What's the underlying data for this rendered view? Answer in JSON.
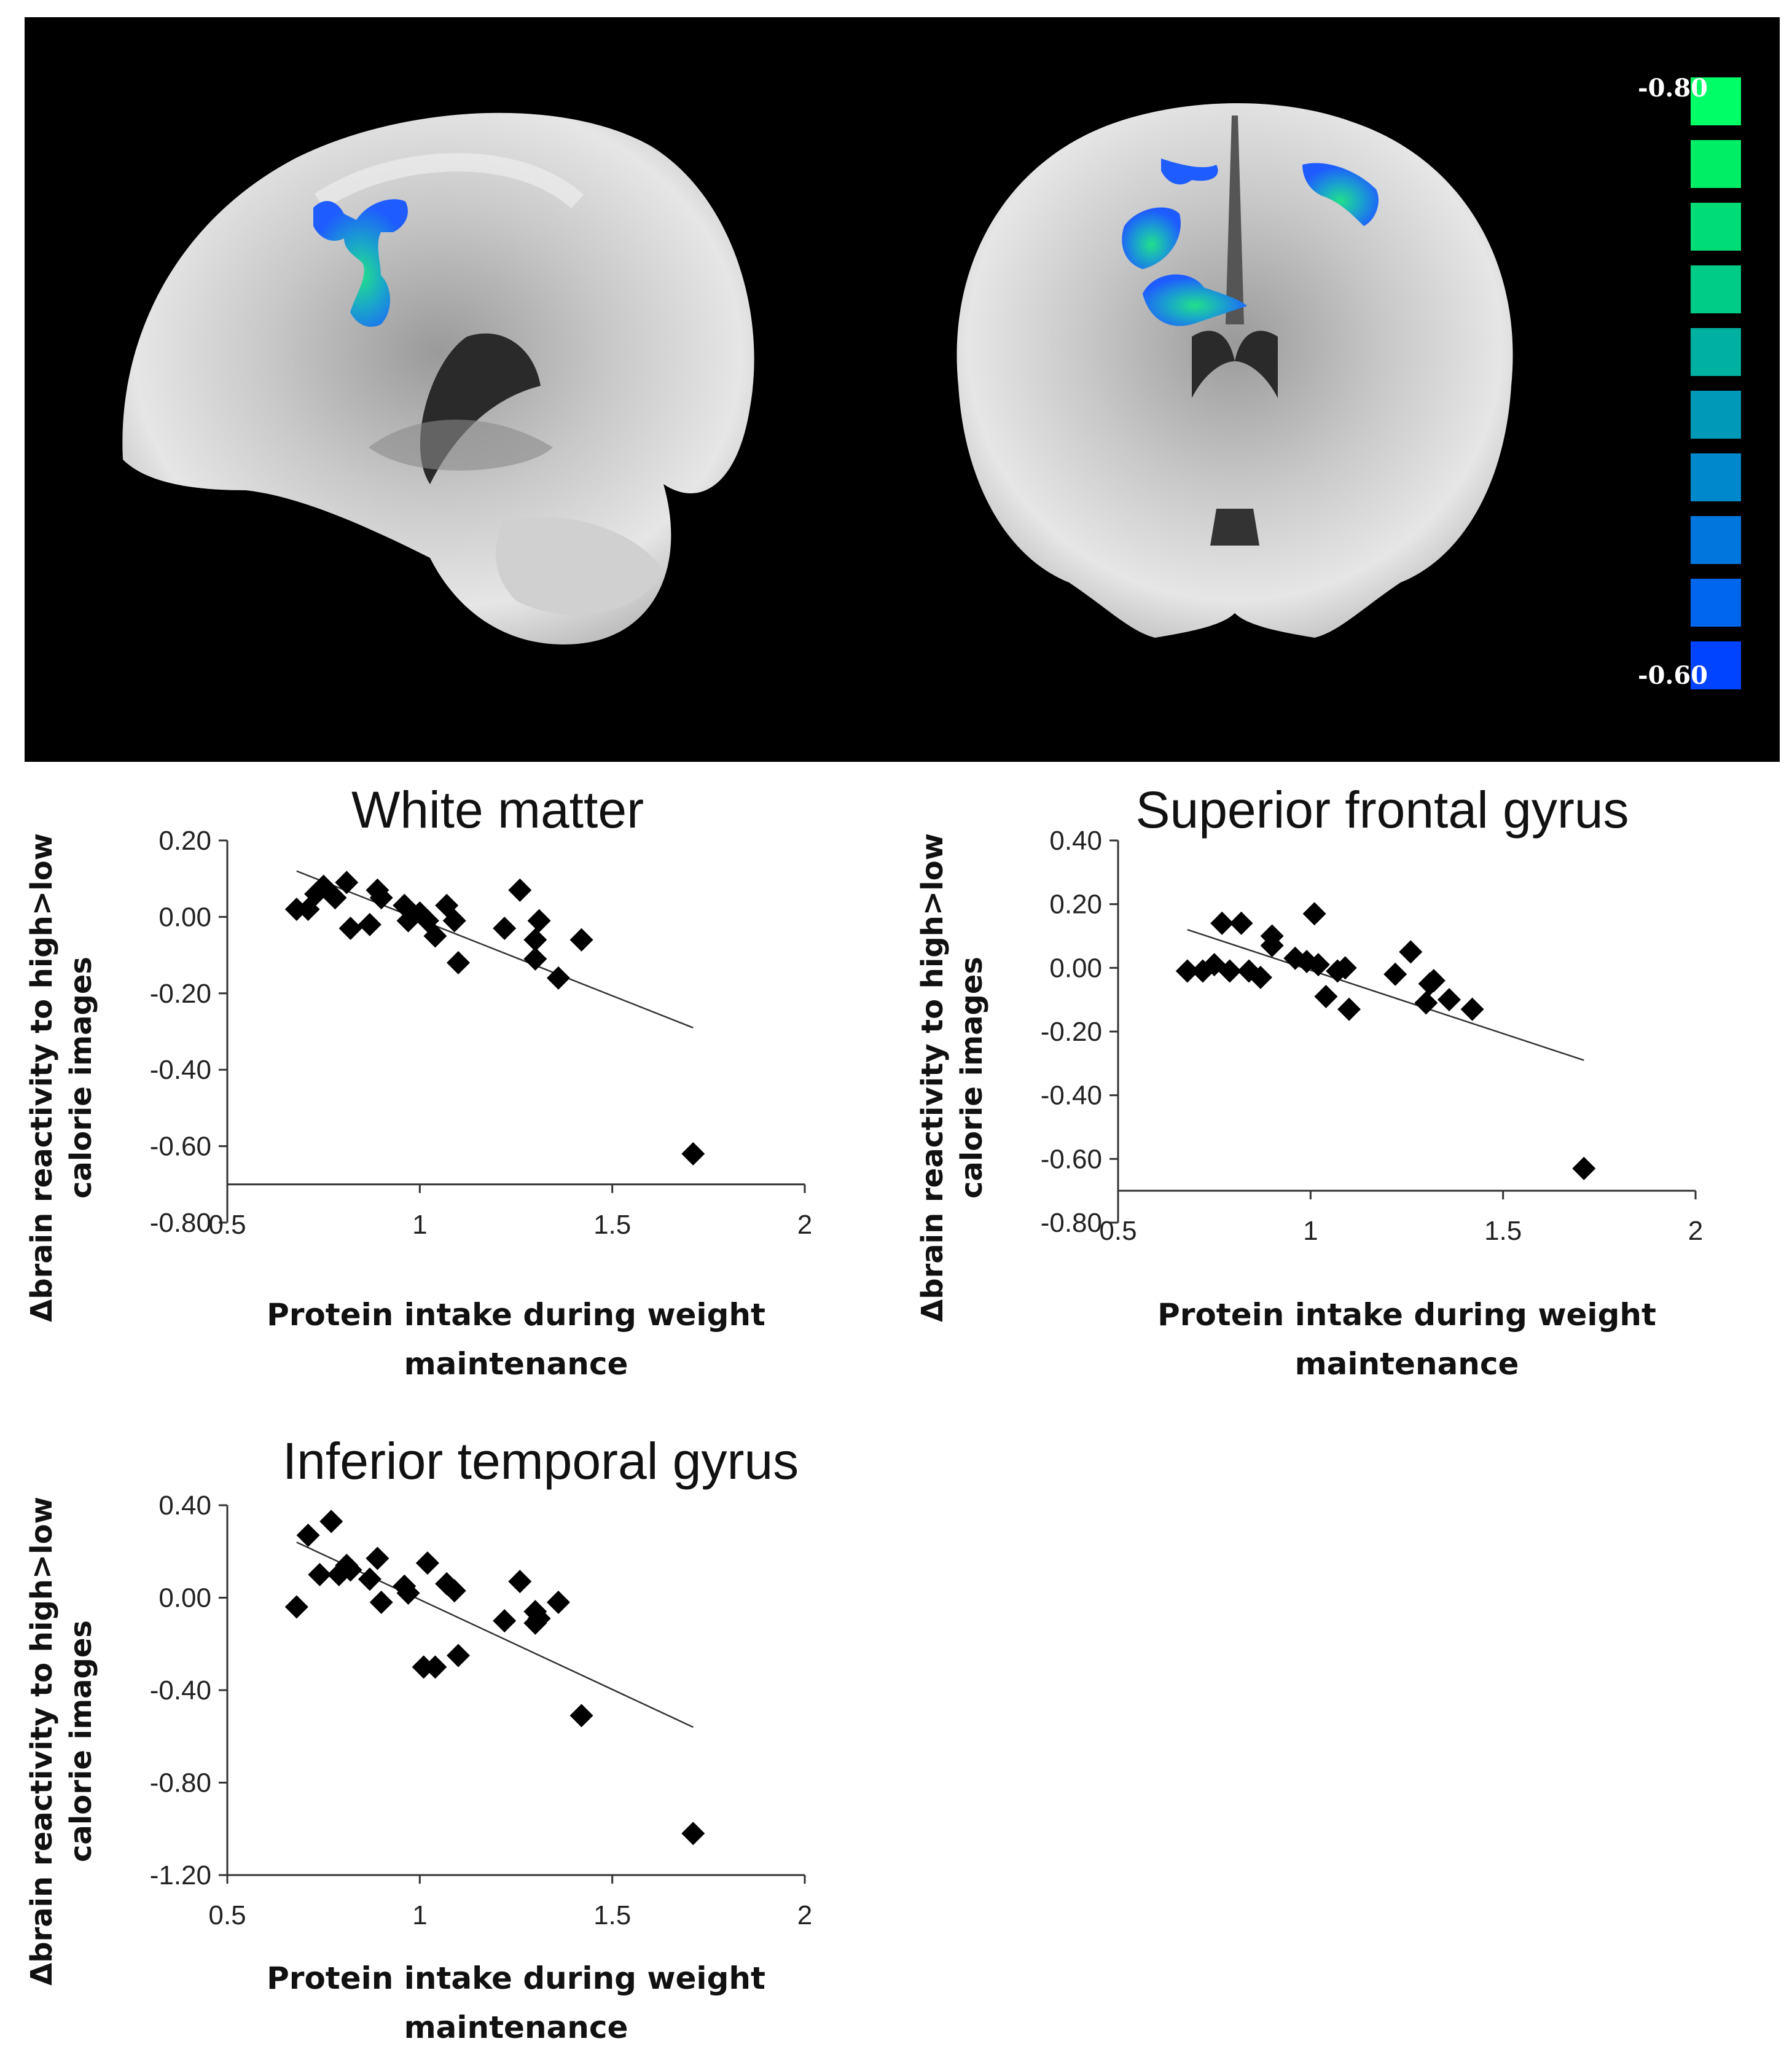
{
  "colorbar": {
    "top_label": "-0.80",
    "bottom_label": "-0.60",
    "colors": [
      "#00ff66",
      "#00ee66",
      "#00dd77",
      "#00cc88",
      "#00b0a0",
      "#0099b8",
      "#0088cc",
      "#0077dd",
      "#0066ee",
      "#0044ff"
    ]
  },
  "plot_colors": {
    "marker": "#000000",
    "trendline": "#333333",
    "axis": "#333333"
  },
  "chart_data": [
    {
      "type": "scatter",
      "title": "White matter",
      "xlabel": "Protein intake during weight maintenance",
      "ylabel": "Δbrain reactivity to high>low calorie images",
      "xlim": [
        0.5,
        2
      ],
      "ylim": [
        -0.8,
        0.2
      ],
      "xticks": [
        0.5,
        1,
        1.5,
        2
      ],
      "xtick_labels": [
        "0.5",
        "1",
        "1.5",
        "2"
      ],
      "yticks": [
        0.2,
        0,
        -0.2,
        -0.4,
        -0.6,
        -0.8
      ],
      "ytick_labels": [
        "0.20",
        "0.00",
        "-0.20",
        "-0.40",
        "-0.60",
        "-0.80"
      ],
      "x_axis_at_y": -0.7,
      "grid": false,
      "legend": false,
      "trendline": {
        "x": [
          0.68,
          1.71
        ],
        "y": [
          0.12,
          -0.29
        ]
      },
      "points": [
        [
          0.68,
          0.02
        ],
        [
          0.71,
          0.02
        ],
        [
          0.73,
          0.06
        ],
        [
          0.75,
          0.08
        ],
        [
          0.77,
          0.06
        ],
        [
          0.78,
          0.05
        ],
        [
          0.81,
          0.09
        ],
        [
          0.82,
          -0.03
        ],
        [
          0.87,
          -0.02
        ],
        [
          0.89,
          0.07
        ],
        [
          0.9,
          0.05
        ],
        [
          0.96,
          0.03
        ],
        [
          0.97,
          -0.01
        ],
        [
          1.0,
          0.01
        ],
        [
          1.02,
          -0.01
        ],
        [
          1.04,
          -0.05
        ],
        [
          1.07,
          0.03
        ],
        [
          1.09,
          -0.01
        ],
        [
          1.1,
          -0.12
        ],
        [
          1.22,
          -0.03
        ],
        [
          1.26,
          0.07
        ],
        [
          1.3,
          -0.06
        ],
        [
          1.3,
          -0.11
        ],
        [
          1.31,
          -0.01
        ],
        [
          1.36,
          -0.16
        ],
        [
          1.42,
          -0.06
        ],
        [
          1.71,
          -0.62
        ]
      ]
    },
    {
      "type": "scatter",
      "title": "Superior frontal gyrus",
      "xlabel": "Protein intake during weight maintenance",
      "ylabel": "Δbrain reactivity to high>low calorie images",
      "xlim": [
        0.5,
        2
      ],
      "ylim": [
        -0.8,
        0.4
      ],
      "xticks": [
        0.5,
        1,
        1.5,
        2
      ],
      "xtick_labels": [
        "0.5",
        "1",
        "1.5",
        "2"
      ],
      "yticks": [
        0.4,
        0.2,
        0,
        -0.2,
        -0.4,
        -0.6,
        -0.8
      ],
      "ytick_labels": [
        "0.40",
        "0.20",
        "0.00",
        "-0.20",
        "-0.40",
        "-0.60",
        "-0.80"
      ],
      "x_axis_at_y": -0.7,
      "grid": false,
      "legend": false,
      "trendline": {
        "x": [
          0.68,
          1.71
        ],
        "y": [
          0.12,
          -0.29
        ]
      },
      "points": [
        [
          0.68,
          -0.01
        ],
        [
          0.72,
          -0.01
        ],
        [
          0.75,
          0.01
        ],
        [
          0.77,
          0.14
        ],
        [
          0.79,
          -0.01
        ],
        [
          0.82,
          0.14
        ],
        [
          0.84,
          -0.01
        ],
        [
          0.87,
          -0.03
        ],
        [
          0.9,
          0.1
        ],
        [
          0.9,
          0.07
        ],
        [
          0.96,
          0.03
        ],
        [
          0.99,
          0.02
        ],
        [
          1.01,
          0.17
        ],
        [
          1.02,
          0.01
        ],
        [
          1.04,
          -0.09
        ],
        [
          1.07,
          -0.01
        ],
        [
          1.09,
          0.0
        ],
        [
          1.1,
          -0.13
        ],
        [
          1.22,
          -0.02
        ],
        [
          1.26,
          0.05
        ],
        [
          1.3,
          -0.11
        ],
        [
          1.31,
          -0.05
        ],
        [
          1.32,
          -0.04
        ],
        [
          1.36,
          -0.1
        ],
        [
          1.42,
          -0.13
        ],
        [
          1.71,
          -0.63
        ]
      ]
    },
    {
      "type": "scatter",
      "title": "Inferior temporal gyrus",
      "xlabel": "Protein intake during weight maintenance",
      "ylabel": "Δbrain reactivity to high>low calorie images",
      "xlim": [
        0.5,
        2
      ],
      "ylim": [
        -1.2,
        0.4
      ],
      "xticks": [
        0.5,
        1,
        1.5,
        2
      ],
      "xtick_labels": [
        "0.5",
        "1",
        "1.5",
        "2"
      ],
      "yticks": [
        0.4,
        0,
        -0.4,
        -0.8,
        -1.2
      ],
      "ytick_labels": [
        "0.40",
        "0.00",
        "-0.40",
        "-0.80",
        "-1.20"
      ],
      "x_axis_at_y": -1.2,
      "grid": false,
      "legend": false,
      "trendline": {
        "x": [
          0.68,
          1.71
        ],
        "y": [
          0.24,
          -0.56
        ]
      },
      "points": [
        [
          0.68,
          -0.04
        ],
        [
          0.71,
          0.27
        ],
        [
          0.74,
          0.1
        ],
        [
          0.77,
          0.33
        ],
        [
          0.79,
          0.1
        ],
        [
          0.81,
          0.14
        ],
        [
          0.82,
          0.12
        ],
        [
          0.87,
          0.08
        ],
        [
          0.89,
          0.17
        ],
        [
          0.9,
          -0.02
        ],
        [
          0.96,
          0.05
        ],
        [
          0.97,
          0.02
        ],
        [
          1.01,
          -0.3
        ],
        [
          1.02,
          0.15
        ],
        [
          1.04,
          -0.3
        ],
        [
          1.07,
          0.06
        ],
        [
          1.09,
          0.03
        ],
        [
          1.1,
          -0.25
        ],
        [
          1.22,
          -0.1
        ],
        [
          1.26,
          0.07
        ],
        [
          1.3,
          -0.06
        ],
        [
          1.3,
          -0.11
        ],
        [
          1.31,
          -0.09
        ],
        [
          1.36,
          -0.02
        ],
        [
          1.42,
          -0.51
        ],
        [
          1.71,
          -1.02
        ]
      ]
    }
  ]
}
